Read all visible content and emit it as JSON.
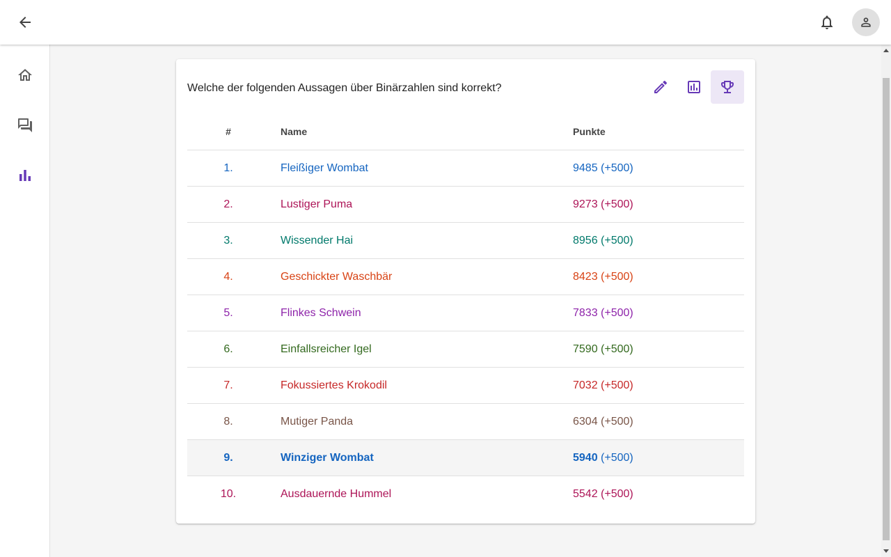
{
  "quiz": {
    "question": "Welche der folgenden Aussagen über Binärzahlen sind korrekt?"
  },
  "icons": {
    "back": "arrow-left-icon",
    "notifications": "bell-icon",
    "account": "person-icon",
    "home": "home-icon",
    "forum": "forum-icon",
    "leaderboard": "bar-chart-icon",
    "edit": "pencil-icon",
    "stats": "poll-icon",
    "trophy": "trophy-icon"
  },
  "colors": {
    "accent": "#673ab7",
    "accent_bg": "#ede7f6"
  },
  "table": {
    "headers": {
      "rank": "#",
      "name": "Name",
      "points": "Punkte"
    },
    "rows": [
      {
        "rank": "1.",
        "name": "Fleißiger Wombat",
        "points": "9485",
        "bonus": "(+500)",
        "color": "#1565c0"
      },
      {
        "rank": "2.",
        "name": "Lustiger Puma",
        "points": "9273",
        "bonus": "(+500)",
        "color": "#ad1457"
      },
      {
        "rank": "3.",
        "name": "Wissender Hai",
        "points": "8956",
        "bonus": "(+500)",
        "color": "#00796b"
      },
      {
        "rank": "4.",
        "name": "Geschickter Waschbär",
        "points": "8423",
        "bonus": "(+500)",
        "color": "#d84315"
      },
      {
        "rank": "5.",
        "name": "Flinkes Schwein",
        "points": "7833",
        "bonus": "(+500)",
        "color": "#8e24aa"
      },
      {
        "rank": "6.",
        "name": "Einfallsreicher Igel",
        "points": "7590",
        "bonus": "(+500)",
        "color": "#33691e"
      },
      {
        "rank": "7.",
        "name": "Fokussiertes Krokodil",
        "points": "7032",
        "bonus": "(+500)",
        "color": "#c62828"
      },
      {
        "rank": "8.",
        "name": "Mutiger Panda",
        "points": "6304",
        "bonus": "(+500)",
        "color": "#795548"
      },
      {
        "rank": "9.",
        "name": "Winziger Wombat",
        "points": "5940",
        "bonus": "(+500)",
        "color": "#1565c0",
        "highlight": true
      },
      {
        "rank": "10.",
        "name": "Ausdauernde Hummel",
        "points": "5542",
        "bonus": "(+500)",
        "color": "#ad1457"
      }
    ]
  }
}
